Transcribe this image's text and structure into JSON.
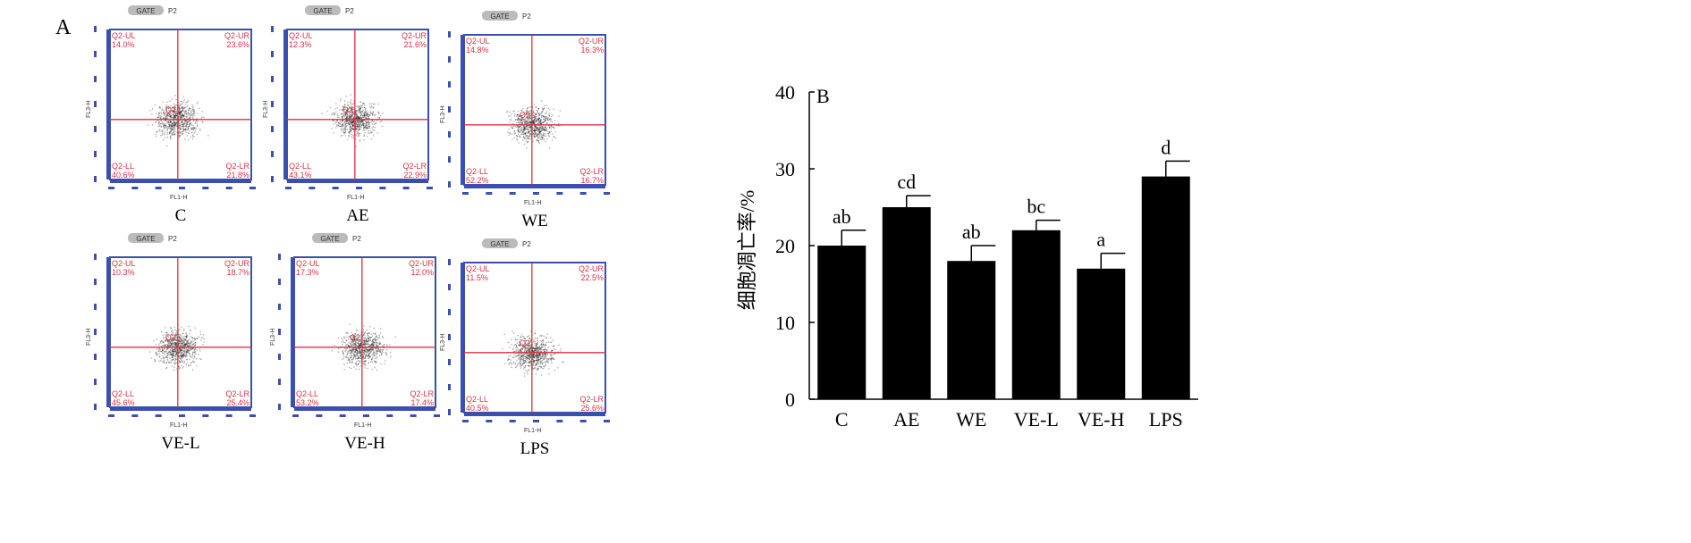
{
  "panel_a": {
    "label": "A",
    "gate_label": "GATE",
    "gate_name": "P2",
    "x_axis": "FL1-H",
    "y_axis": "FL3-H",
    "center_label": "Q2",
    "quadrant_names": [
      "Q2-UL",
      "Q2-UR",
      "Q2-LL",
      "Q2-LR"
    ],
    "plots": [
      {
        "name": "C",
        "ul": "14.0%",
        "ur": "23.6%",
        "ll": "40.6%",
        "lr": "21.8%"
      },
      {
        "name": "AE",
        "ul": "12.3%",
        "ur": "21.6%",
        "ll": "43.1%",
        "lr": "22.9%"
      },
      {
        "name": "WE",
        "ul": "14.8%",
        "ur": "16.3%",
        "ll": "52.2%",
        "lr": "16.7%"
      },
      {
        "name": "VE-L",
        "ul": "10.3%",
        "ur": "18.7%",
        "ll": "45.6%",
        "lr": "25.4%"
      },
      {
        "name": "VE-H",
        "ul": "17.3%",
        "ur": "12.0%",
        "ll": "53.2%",
        "lr": "17.4%"
      },
      {
        "name": "LPS",
        "ul": "11.5%",
        "ur": "22.5%",
        "ll": "40.5%",
        "lr": "25.6%"
      }
    ]
  },
  "chart_data": {
    "type": "bar",
    "panel_label": "B",
    "categories": [
      "C",
      "AE",
      "WE",
      "VE-L",
      "VE-H",
      "LPS"
    ],
    "values": [
      20,
      25,
      18,
      22,
      17,
      29
    ],
    "errors": [
      2,
      1.5,
      2,
      1.3,
      2,
      2
    ],
    "significance": [
      "ab",
      "cd",
      "ab",
      "bc",
      "a",
      "d"
    ],
    "ylabel": "细胞凋亡率/%",
    "xlabel": "",
    "ylim": [
      0,
      40
    ],
    "yticks": [
      0,
      10,
      20,
      30,
      40
    ],
    "bar_color": "#000000"
  }
}
